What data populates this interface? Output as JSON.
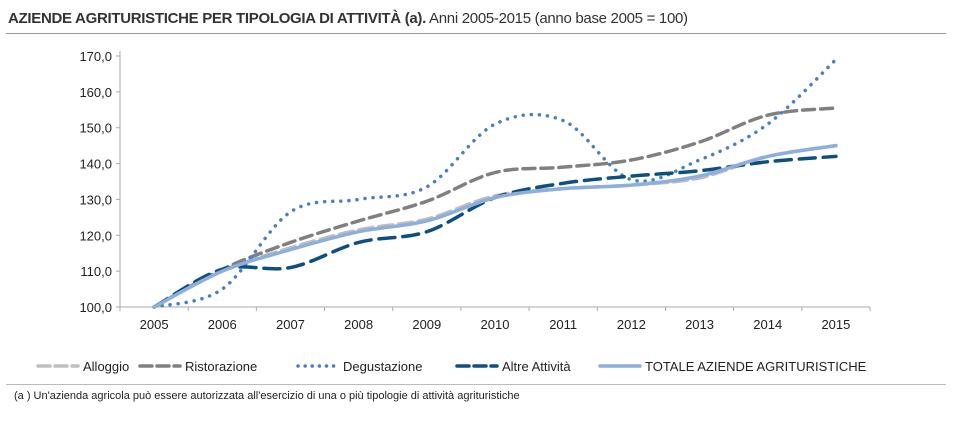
{
  "chart_data": {
    "type": "line",
    "title_bold": "AZIENDE AGRITURISTICHE PER TIPOLOGIA DI ATTIVITÀ (a).",
    "title_rest": " Anni 2005-2015 (anno base  2005 = 100)",
    "categories": [
      "2005",
      "2006",
      "2007",
      "2008",
      "2009",
      "2010",
      "2011",
      "2012",
      "2013",
      "2014",
      "2015"
    ],
    "ylim": [
      100,
      170
    ],
    "yticks": [
      "100,0",
      "110,0",
      "120,0",
      "130,0",
      "140,0",
      "150,0",
      "160,0",
      "170,0"
    ],
    "grid": false,
    "legend_position": "bottom",
    "series": [
      {
        "name": "Alloggio",
        "color": "#bfbfbf",
        "dash": "14 6",
        "width": 3.5,
        "values": [
          100,
          110,
          116.5,
          121.5,
          124.5,
          131,
          133,
          134,
          136,
          142,
          145
        ]
      },
      {
        "name": "Ristorazione",
        "color": "#808080",
        "dash": "12 6",
        "width": 3.5,
        "values": [
          100,
          110.5,
          118,
          124,
          129.5,
          137.5,
          139,
          141,
          146,
          153.5,
          155.5
        ]
      },
      {
        "name": "Degustazione",
        "color": "#4a7fc4",
        "dash": "0.1 8",
        "width": 3.5,
        "values": [
          100,
          105,
          126.5,
          130,
          133.5,
          151,
          152,
          135.5,
          141,
          151,
          169
        ]
      },
      {
        "name": "Altre Attività",
        "color": "#0d4f7f",
        "dash": "16 8",
        "width": 3.5,
        "values": [
          100,
          110.5,
          111,
          118,
          121,
          130.5,
          134.5,
          136.5,
          138,
          140.5,
          142
        ]
      },
      {
        "name": "TOTALE AZIENDE AGRITURISTICHE",
        "color": "#8eaede",
        "dash": "",
        "width": 3.5,
        "values": [
          100,
          110,
          116,
          121,
          124,
          130.5,
          133,
          134,
          136.5,
          142,
          145
        ]
      }
    ]
  },
  "footnote": "(a ) Un'azienda agricola può essere autorizzata all'esercizio di una o più tipologie di attività agrituristiche"
}
